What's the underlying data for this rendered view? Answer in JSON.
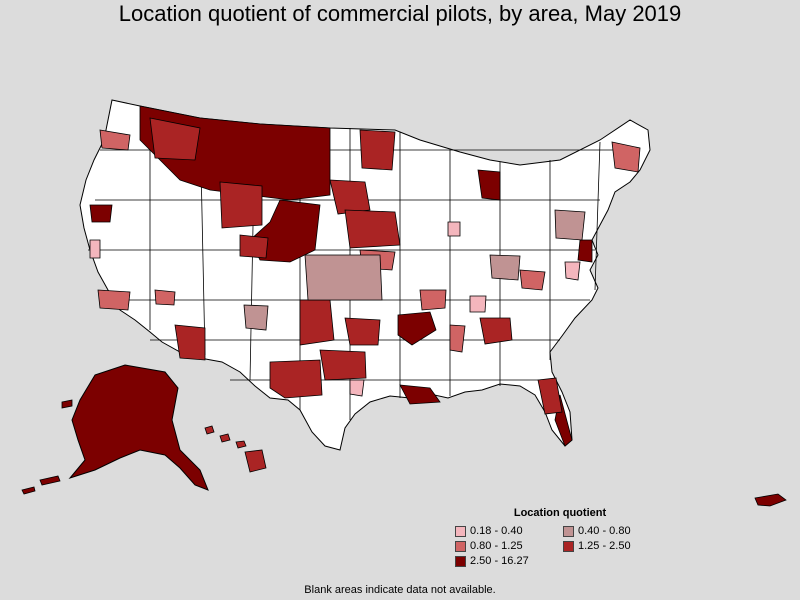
{
  "title": "Location quotient of commercial pilots, by area, May 2019",
  "legend": {
    "title": "Location quotient",
    "items": [
      {
        "label": "0.18 - 0.40",
        "color": "#f4b6bd"
      },
      {
        "label": "0.40 - 0.80",
        "color": "#c09393"
      },
      {
        "label": "0.80 - 1.25",
        "color": "#d06464"
      },
      {
        "label": "1.25 - 2.50",
        "color": "#aa2424"
      },
      {
        "label": "2.50 - 16.27",
        "color": "#7c0000"
      }
    ]
  },
  "footnote": "Blank areas indicate data not available.",
  "colors": {
    "background": "#dcdcdc",
    "no_data": "#ffffff",
    "border": "#000000"
  }
}
